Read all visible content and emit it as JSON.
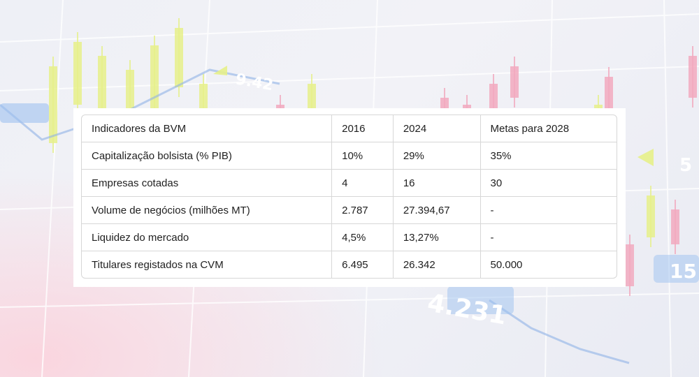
{
  "table": {
    "header": [
      "Indicadores da BVM",
      "2016",
      "2024",
      "Metas para 2028"
    ],
    "rows": [
      [
        "Capitalização bolsista (% PIB)",
        "10%",
        "29%",
        "35%"
      ],
      [
        "Empresas cotadas",
        "4",
        "16",
        "30"
      ],
      [
        "Volume de negócios (milhões MT)",
        "2.787",
        "27.394,67",
        "-"
      ],
      [
        "Liquidez do mercado",
        "4,5%",
        "13,27%",
        "-"
      ],
      [
        "Titulares registados na CVM",
        "6.495",
        "26.342",
        "50.000"
      ]
    ]
  },
  "background": {
    "ticker_labels": [
      "9.42",
      "4.231",
      "5",
      "15"
    ],
    "colors": {
      "rise": "#e6f08a",
      "fall": "#f2a9be",
      "grid": "#ffffff"
    }
  }
}
